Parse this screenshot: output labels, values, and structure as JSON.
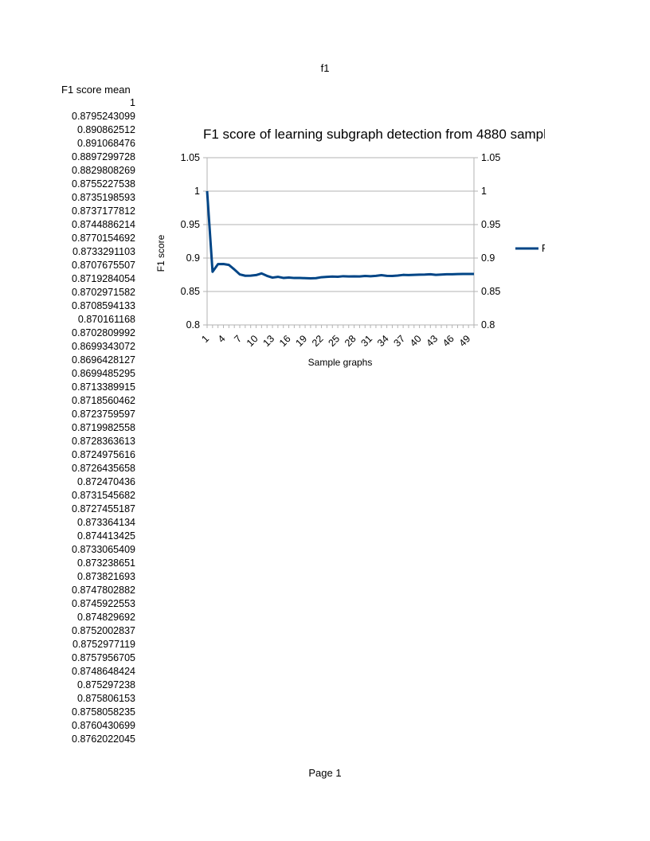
{
  "page": {
    "header": "f1",
    "footer": "Page 1"
  },
  "table": {
    "column_header": "F1 score mean",
    "values": [
      "1",
      "0.8795243099",
      "0.890862512",
      "0.891068476",
      "0.8897299728",
      "0.8829808269",
      "0.8755227538",
      "0.8735198593",
      "0.8737177812",
      "0.8744886214",
      "0.8770154692",
      "0.8733291103",
      "0.8707675507",
      "0.8719284054",
      "0.8702971582",
      "0.8708594133",
      "0.870161168",
      "0.8702809992",
      "0.8699343072",
      "0.8696428127",
      "0.8699485295",
      "0.8713389915",
      "0.8718560462",
      "0.8723759597",
      "0.8719982558",
      "0.8728363613",
      "0.8724975616",
      "0.8726435658",
      "0.872470436",
      "0.8731545682",
      "0.8727455187",
      "0.873364134",
      "0.874413425",
      "0.8733065409",
      "0.873238651",
      "0.873821693",
      "0.8747802882",
      "0.8745922553",
      "0.874829692",
      "0.8752002837",
      "0.8752977119",
      "0.8757956705",
      "0.8748648424",
      "0.875297238",
      "0.875806153",
      "0.8758058235",
      "0.8760430699",
      "0.8762022045"
    ]
  },
  "chart_data": {
    "type": "line",
    "title": "F1 score of learning subgraph detection from 4880 sampl",
    "xlabel": "Sample graphs",
    "ylabel": "F1 score",
    "ylim": [
      0.8,
      1.05
    ],
    "yticks": [
      "0.8",
      "0.85",
      "0.9",
      "0.95",
      "1",
      "1.05"
    ],
    "secondary_y_axis": true,
    "grid": true,
    "legend_position": "right",
    "legend_text": "F",
    "line_color": "#004586",
    "x": [
      1,
      2,
      3,
      4,
      5,
      6,
      7,
      8,
      9,
      10,
      11,
      12,
      13,
      14,
      15,
      16,
      17,
      18,
      19,
      20,
      21,
      22,
      23,
      24,
      25,
      26,
      27,
      28,
      29,
      30,
      31,
      32,
      33,
      34,
      35,
      36,
      37,
      38,
      39,
      40,
      41,
      42,
      43,
      44,
      45,
      46,
      47,
      48,
      49,
      50
    ],
    "xtick_labels": [
      "1",
      "4",
      "7",
      "10",
      "13",
      "16",
      "19",
      "22",
      "25",
      "28",
      "31",
      "34",
      "37",
      "40",
      "43",
      "46",
      "49"
    ],
    "series": [
      {
        "values": [
          1,
          0.8795243099,
          0.890862512,
          0.891068476,
          0.8897299728,
          0.8829808269,
          0.8755227538,
          0.8735198593,
          0.8737177812,
          0.8744886214,
          0.8770154692,
          0.8733291103,
          0.8707675507,
          0.8719284054,
          0.8702971582,
          0.8708594133,
          0.870161168,
          0.8702809992,
          0.8699343072,
          0.8696428127,
          0.8699485295,
          0.8713389915,
          0.8718560462,
          0.8723759597,
          0.8719982558,
          0.8728363613,
          0.8724975616,
          0.8726435658,
          0.872470436,
          0.8731545682,
          0.8727455187,
          0.873364134,
          0.874413425,
          0.8733065409,
          0.873238651,
          0.873821693,
          0.8747802882,
          0.8745922553,
          0.874829692,
          0.8752002837,
          0.8752977119,
          0.8757956705,
          0.8748648424,
          0.875297238,
          0.875806153,
          0.8758058235,
          0.8760430699,
          0.8762022045,
          0.8762022045,
          0.8762022045
        ]
      }
    ]
  }
}
